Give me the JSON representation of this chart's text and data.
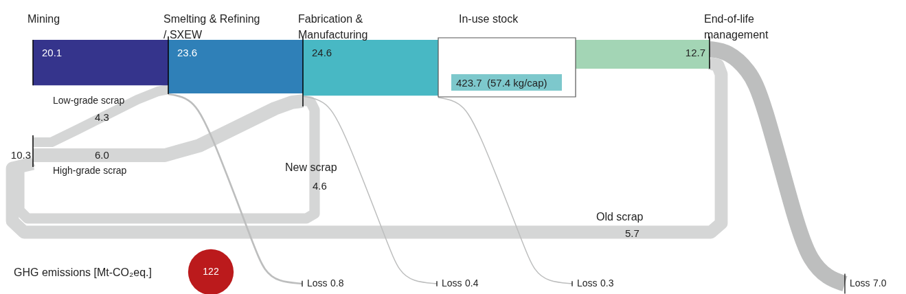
{
  "chart_data": {
    "type": "other",
    "categories": [
      "Mining",
      "Smelting & Refining\n/ SXEW",
      "Fabrication &\nManufacturing",
      "In-use stock",
      "End-of-life\nmanagement",
      "Low-grade scrap",
      "High-grade scrap",
      "New scrap",
      "Old scrap",
      "Loss",
      "Loss",
      "Loss",
      "Loss"
    ],
    "values": [
      20.1,
      23.6,
      24.6,
      423.7,
      12.7,
      4.3,
      6.0,
      4.6,
      5.7,
      0.8,
      0.4,
      0.3,
      7.0
    ],
    "colors": [
      "#35348c",
      "#2f80b8",
      "#48b8c4",
      "#7dc8cc",
      "#a3d5b5",
      "#d5d6d6",
      "#d5d6d6",
      "#d5d6d6",
      "#d5d6d6",
      "#bdbebe",
      "#bdbebe",
      "#bdbebe",
      "#bdbebe"
    ],
    "value_labels": [
      "20.1",
      "23.6",
      "24.6",
      "423.7",
      "12.7",
      "4.3",
      "6.0",
      "4.6",
      "5.7",
      "0.8",
      "0.4",
      "0.3",
      "7.0"
    ],
    "annotations": [
      "GHG emissions [Mt-CO₂eq.]",
      "122",
      "(57.4 kg/cap)",
      "10.3"
    ]
  }
}
